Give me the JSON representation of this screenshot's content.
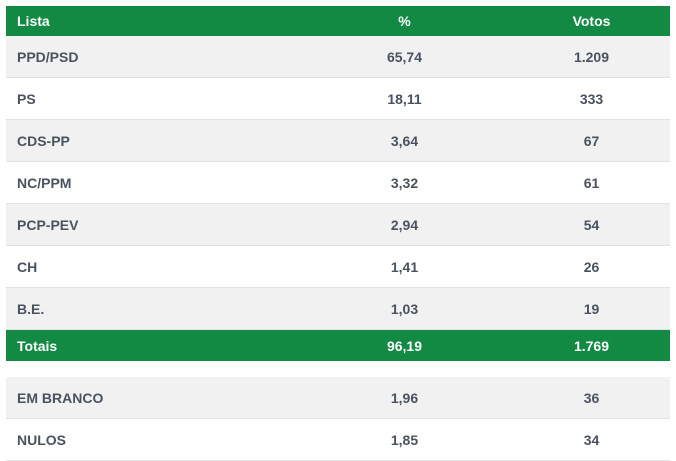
{
  "colors": {
    "header_bg": "#128a44",
    "row_alt_bg": "#f1f1f1",
    "row_bg": "#ffffff",
    "text": "#4a5260"
  },
  "header": {
    "col_list": "Lista",
    "col_percent": "%",
    "col_votes": "Votos"
  },
  "rows": [
    {
      "list": "PPD/PSD",
      "percent": "65,74",
      "votes": "1.209"
    },
    {
      "list": "PS",
      "percent": "18,11",
      "votes": "333"
    },
    {
      "list": "CDS-PP",
      "percent": "3,64",
      "votes": "67"
    },
    {
      "list": "NC/PPM",
      "percent": "3,32",
      "votes": "61"
    },
    {
      "list": "PCP-PEV",
      "percent": "2,94",
      "votes": "54"
    },
    {
      "list": "CH",
      "percent": "1,41",
      "votes": "26"
    },
    {
      "list": "B.E.",
      "percent": "1,03",
      "votes": "19"
    }
  ],
  "totals": {
    "label": "Totais",
    "percent": "96,19",
    "votes": "1.769"
  },
  "extra_rows": [
    {
      "list": "EM BRANCO",
      "percent": "1,96",
      "votes": "36"
    },
    {
      "list": "NULOS",
      "percent": "1,85",
      "votes": "34"
    }
  ]
}
